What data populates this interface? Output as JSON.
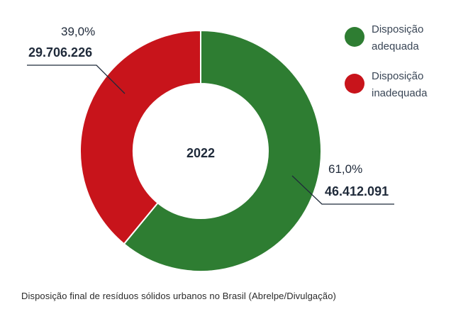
{
  "chart_data": {
    "type": "pie",
    "center_label": "2022",
    "slices": [
      {
        "name": "Disposição adequada",
        "percent_label": "61,0%",
        "value": 46412091,
        "value_label": "46.412.091",
        "fraction": 0.61,
        "color": "#2e7d32"
      },
      {
        "name": "Disposição inadequada",
        "percent_label": "39,0%",
        "value": 29706226,
        "value_label": "29.706.226",
        "fraction": 0.39,
        "color": "#c8141b"
      }
    ],
    "legend": {
      "placement": "top-right",
      "entries": [
        {
          "line1": "Disposição",
          "line2": "adequada",
          "color": "#2e7d32"
        },
        {
          "line1": "Disposição",
          "line2": "inadequada",
          "color": "#c8141b"
        }
      ]
    }
  },
  "caption": "Disposição final de resíduos sólidos urbanos no Brasil (Abrelpe/Divulgação)"
}
